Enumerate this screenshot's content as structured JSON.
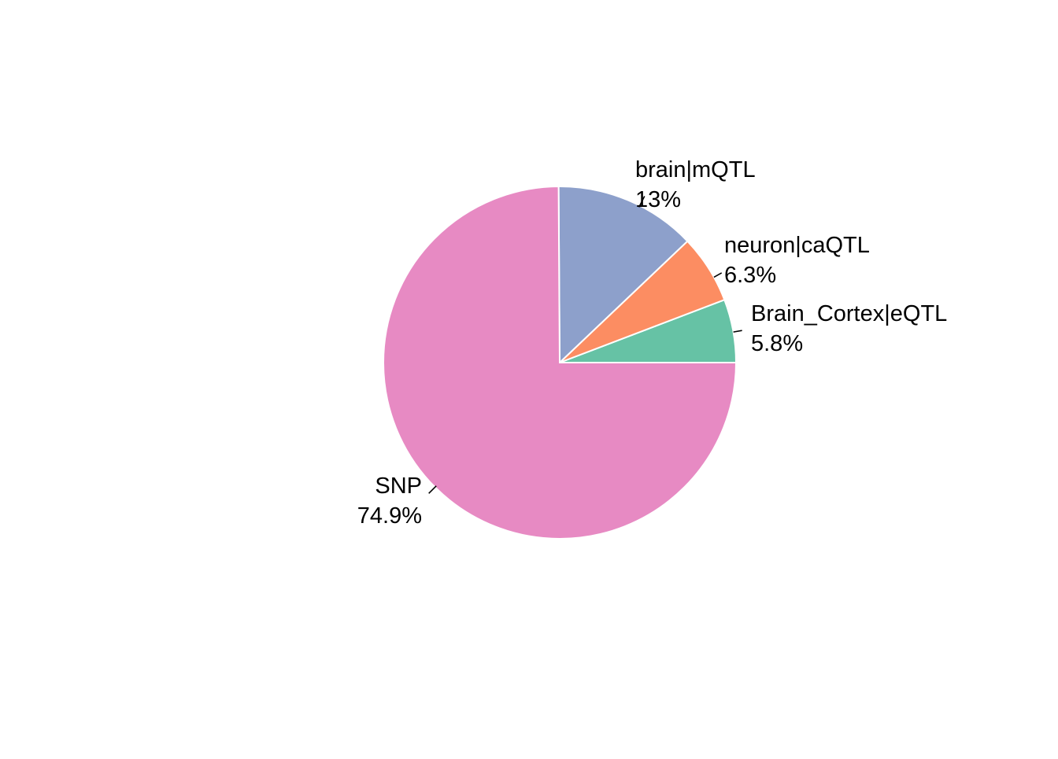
{
  "chart_data": {
    "type": "pie",
    "slices": [
      {
        "label": "Brain_Cortex|eQTL",
        "percent_label": "5.8%",
        "value": 5.8,
        "color": "#66c2a5"
      },
      {
        "label": "neuron|caQTL",
        "percent_label": "6.3%",
        "value": 6.3,
        "color": "#fc8d62"
      },
      {
        "label": "brain|mQTL",
        "percent_label": "13%",
        "value": 13.0,
        "color": "#8da0cb"
      },
      {
        "label": "SNP",
        "percent_label": "74.9%",
        "value": 74.9,
        "color": "#e78ac3"
      }
    ],
    "start_angle_deg": 0,
    "direction": "counterclockwise",
    "slice_border_color": "#ffffff",
    "leader_line_color": "#000000"
  }
}
